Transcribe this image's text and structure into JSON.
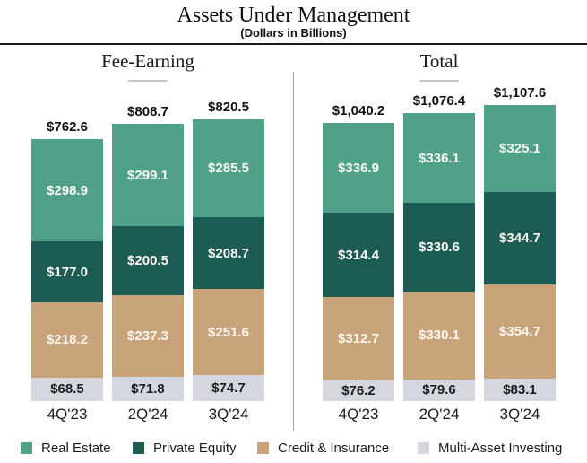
{
  "title": "Assets Under Management",
  "subtitle": "(Dollars in Billions)",
  "colors": {
    "real_estate": "#4fa18a",
    "private_equity": "#1d5c55",
    "credit_insurance": "#c9a47b",
    "multi_asset": "#d5d7e0",
    "text_dark": "#1c1c1c",
    "divider_gray": "#a3a3a3"
  },
  "legend": [
    {
      "label": "Real Estate",
      "color": "#4fa18a",
      "dark_text": false
    },
    {
      "label": "Private Equity",
      "color": "#1d5c55",
      "dark_text": false
    },
    {
      "label": "Credit & Insurance",
      "color": "#c9a47b",
      "dark_text": false
    },
    {
      "label": "Multi-Asset Investing",
      "color": "#d5d7e0",
      "dark_text": true
    }
  ],
  "chart_data": [
    {
      "type": "bar",
      "stacked": true,
      "group_title": "Fee-Earning",
      "categories": [
        "4Q'23",
        "2Q'24",
        "3Q'24"
      ],
      "totals": [
        "$762.6",
        "$808.7",
        "$820.5"
      ],
      "total_values": [
        762.6,
        808.7,
        820.5
      ],
      "series": [
        {
          "name": "Real Estate",
          "values": [
            298.9,
            299.1,
            285.5
          ]
        },
        {
          "name": "Private Equity",
          "values": [
            177.0,
            200.5,
            208.7
          ]
        },
        {
          "name": "Credit & Insurance",
          "values": [
            218.2,
            237.3,
            251.6
          ]
        },
        {
          "name": "Multi-Asset Investing",
          "values": [
            68.5,
            71.8,
            74.7
          ]
        }
      ],
      "legend_position": "bottom",
      "grid": false
    },
    {
      "type": "bar",
      "stacked": true,
      "group_title": "Total",
      "categories": [
        "4Q'23",
        "2Q'24",
        "3Q'24"
      ],
      "totals": [
        "$1,040.2",
        "$1,076.4",
        "$1,107.6"
      ],
      "total_values": [
        1040.2,
        1076.4,
        1107.6
      ],
      "series": [
        {
          "name": "Real Estate",
          "values": [
            336.9,
            336.1,
            325.1
          ]
        },
        {
          "name": "Private Equity",
          "values": [
            314.4,
            330.6,
            344.7
          ]
        },
        {
          "name": "Credit & Insurance",
          "values": [
            312.7,
            330.1,
            354.7
          ]
        },
        {
          "name": "Multi-Asset Investing",
          "values": [
            76.2,
            79.6,
            83.1
          ]
        }
      ],
      "legend_position": "bottom",
      "grid": false
    }
  ]
}
